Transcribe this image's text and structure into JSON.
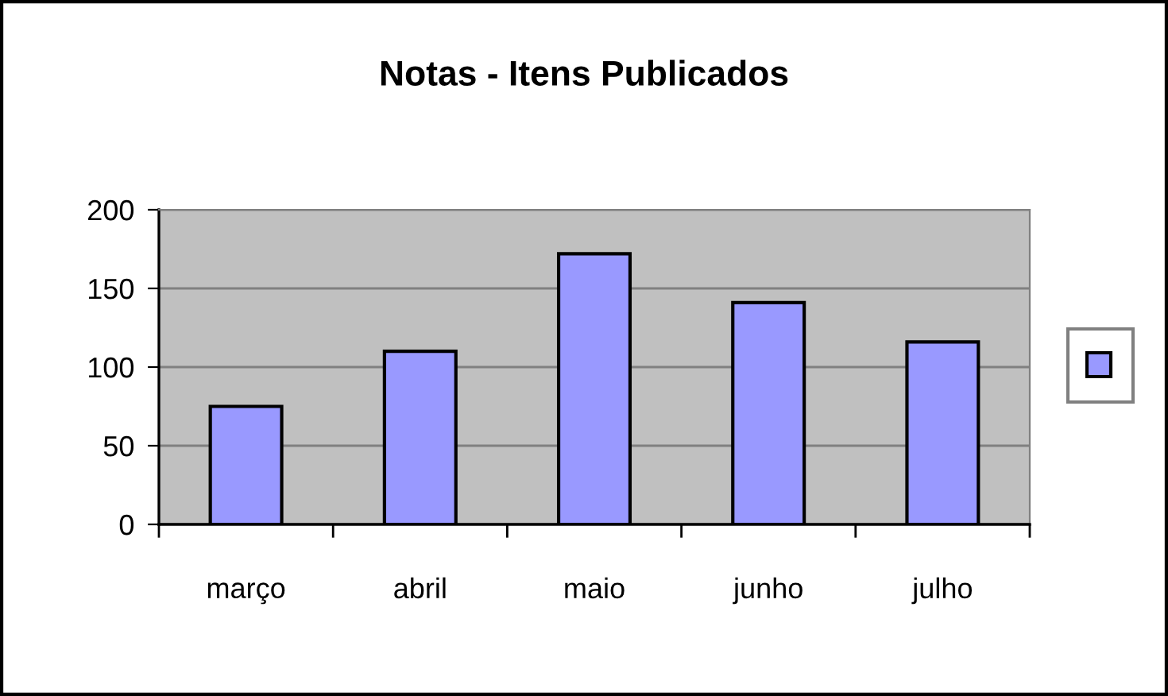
{
  "chart_data": {
    "type": "bar",
    "title": "Notas - Itens Publicados",
    "categories": [
      "março",
      "abril",
      "maio",
      "junho",
      "julho"
    ],
    "series": [
      {
        "color": "#9999ff",
        "values": [
          75,
          110,
          172,
          141,
          116
        ]
      }
    ],
    "ylim": [
      0,
      200
    ],
    "yticks": [
      0,
      50,
      100,
      150,
      200
    ],
    "grid": "y"
  }
}
